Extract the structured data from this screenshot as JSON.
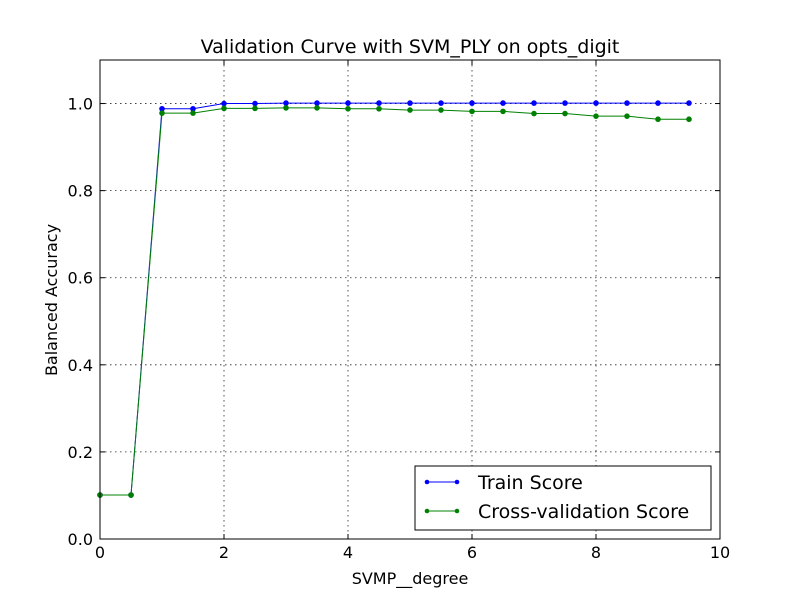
{
  "chart_data": {
    "type": "line",
    "title": "Validation Curve with SVM_PLY on opts_digit",
    "xlabel": "SVMP__degree",
    "ylabel": "Balanced Accuracy",
    "xlim": [
      0,
      10
    ],
    "ylim": [
      0.0,
      1.1
    ],
    "x_ticks": [
      "0",
      "2",
      "4",
      "6",
      "8",
      "10"
    ],
    "y_ticks": [
      "0.0",
      "0.2",
      "0.4",
      "0.6",
      "0.8",
      "1.0"
    ],
    "grid": true,
    "legend_position": "lower-right",
    "x": [
      0,
      0.5,
      1.0,
      1.5,
      2.0,
      2.5,
      3.0,
      3.5,
      4.0,
      4.5,
      5.0,
      5.5,
      6.0,
      6.5,
      7.0,
      7.5,
      8.0,
      8.5,
      9.0,
      9.5
    ],
    "series": [
      {
        "name": "Train Score",
        "color": "#0000ff",
        "values": [
          0.101,
          0.101,
          0.988,
          0.988,
          1.0,
          1.0,
          1.001,
          1.001,
          1.001,
          1.001,
          1.001,
          1.001,
          1.001,
          1.001,
          1.001,
          1.001,
          1.001,
          1.001,
          1.001,
          1.001
        ]
      },
      {
        "name": "Cross-validation Score",
        "color": "#008000",
        "values": [
          0.101,
          0.101,
          0.978,
          0.978,
          0.989,
          0.989,
          0.99,
          0.99,
          0.988,
          0.988,
          0.985,
          0.985,
          0.982,
          0.982,
          0.977,
          0.977,
          0.971,
          0.971,
          0.964,
          0.964
        ]
      }
    ]
  }
}
